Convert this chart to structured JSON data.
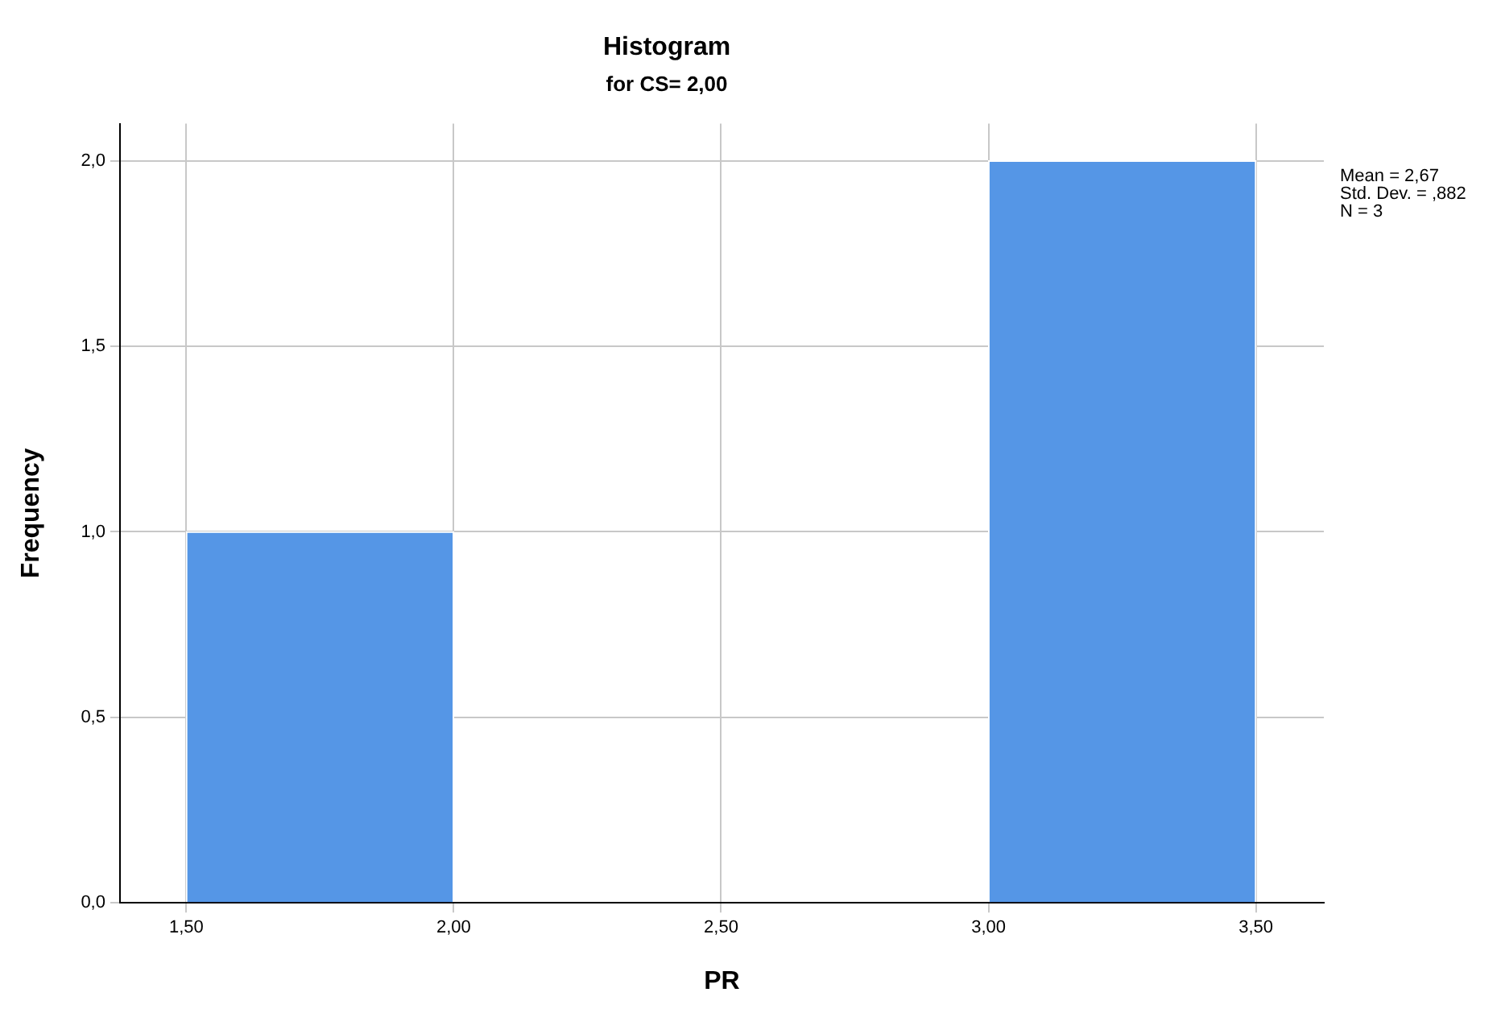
{
  "chart_data": {
    "type": "histogram",
    "title": "Histogram",
    "subtitle": "for CS= 2,00",
    "xlabel": "PR",
    "ylabel": "Frequency",
    "bins": [
      1.5,
      2.0,
      2.5,
      3.0,
      3.5
    ],
    "values": [
      1,
      0,
      0,
      2
    ],
    "color": "#5596e6",
    "xlim": [
      1.376,
      3.627
    ],
    "ylim": [
      0,
      2.1
    ],
    "xticks": [
      {
        "value": 1.5,
        "label": "1,50"
      },
      {
        "value": 2.0,
        "label": "2,00"
      },
      {
        "value": 2.5,
        "label": "2,50"
      },
      {
        "value": 3.0,
        "label": "3,00"
      },
      {
        "value": 3.5,
        "label": "3,50"
      }
    ],
    "yticks": [
      {
        "value": 0,
        "label": "0,0"
      },
      {
        "value": 0.5,
        "label": "0,5"
      },
      {
        "value": 1.0,
        "label": "1,0"
      },
      {
        "value": 1.5,
        "label": "1,5"
      },
      {
        "value": 2.0,
        "label": "2,0"
      }
    ],
    "grid": true,
    "annotations": [
      "Mean = 2,67",
      "Std. Dev. = ,882",
      "N = 3"
    ]
  }
}
